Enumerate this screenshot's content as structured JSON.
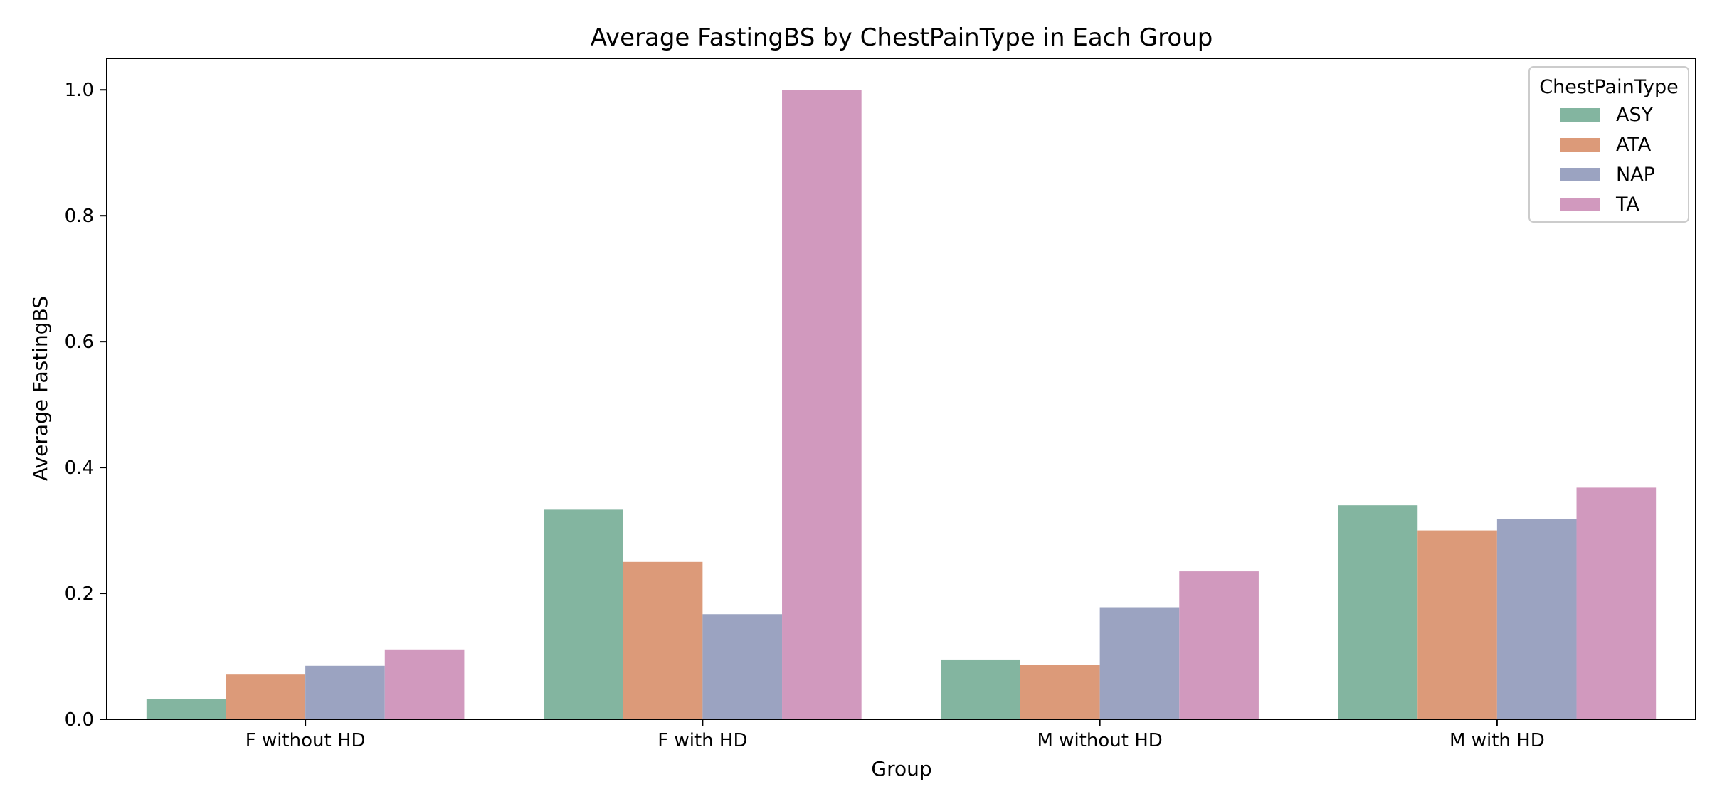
{
  "chart_data": {
    "type": "bar",
    "title": "Average FastingBS by ChestPainType in Each Group",
    "xlabel": "Group",
    "ylabel": "Average FastingBS",
    "categories": [
      "F without HD",
      "F with HD",
      "M without HD",
      "M with HD"
    ],
    "ylim": [
      0,
      1.05
    ],
    "yticks": [
      "0.0",
      "0.2",
      "0.4",
      "0.6",
      "0.8",
      "1.0"
    ],
    "grid": false,
    "legend": {
      "title": "ChestPainType",
      "placement": "top-right"
    },
    "series": [
      {
        "name": "ASY",
        "color": "#83b5a0",
        "values": [
          0.032,
          0.333,
          0.095,
          0.34
        ]
      },
      {
        "name": "ATA",
        "color": "#dc9a79",
        "values": [
          0.071,
          0.25,
          0.086,
          0.3
        ]
      },
      {
        "name": "NAP",
        "color": "#9ba3c1",
        "values": [
          0.085,
          0.167,
          0.178,
          0.318
        ]
      },
      {
        "name": "TA",
        "color": "#d199be",
        "values": [
          0.111,
          1.0,
          0.235,
          0.368
        ]
      }
    ]
  }
}
